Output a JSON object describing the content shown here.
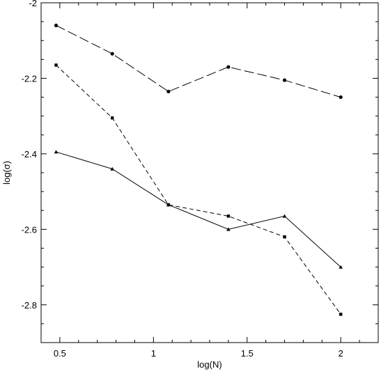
{
  "chart_data": {
    "type": "line",
    "title": "",
    "xlabel": "log(N)",
    "ylabel": "log(σ)",
    "xlim": [
      0.4,
      2.2
    ],
    "ylim": [
      -2.9,
      -2.0
    ],
    "x_ticks": [
      0.5,
      1,
      1.5,
      2
    ],
    "x_tick_labels": [
      "0.5",
      "1",
      "1.5",
      "2"
    ],
    "y_ticks": [
      -2.8,
      -2.6,
      -2.4,
      -2.2,
      -2.0
    ],
    "y_tick_labels": [
      "-2.8",
      "-2.6",
      "-2.4",
      "-2.2",
      "-2"
    ],
    "grid": false,
    "legend": "none",
    "series": [
      {
        "line_style": "long-dash",
        "marker": "circle",
        "color": "#000000",
        "x": [
          0.48,
          0.78,
          1.08,
          1.4,
          1.7,
          2.0
        ],
        "y": [
          -2.06,
          -2.135,
          -2.235,
          -2.17,
          -2.205,
          -2.25
        ]
      },
      {
        "line_style": "short-dash",
        "marker": "square",
        "color": "#000000",
        "x": [
          0.48,
          0.78,
          1.08,
          1.4,
          1.7,
          2.0
        ],
        "y": [
          -2.165,
          -2.305,
          -2.535,
          -2.565,
          -2.62,
          -2.825
        ]
      },
      {
        "line_style": "solid",
        "marker": "triangle",
        "color": "#000000",
        "x": [
          0.48,
          0.78,
          1.08,
          1.4,
          1.7,
          2.0
        ],
        "y": [
          -2.395,
          -2.44,
          -2.535,
          -2.6,
          -2.565,
          -2.7
        ]
      }
    ]
  }
}
